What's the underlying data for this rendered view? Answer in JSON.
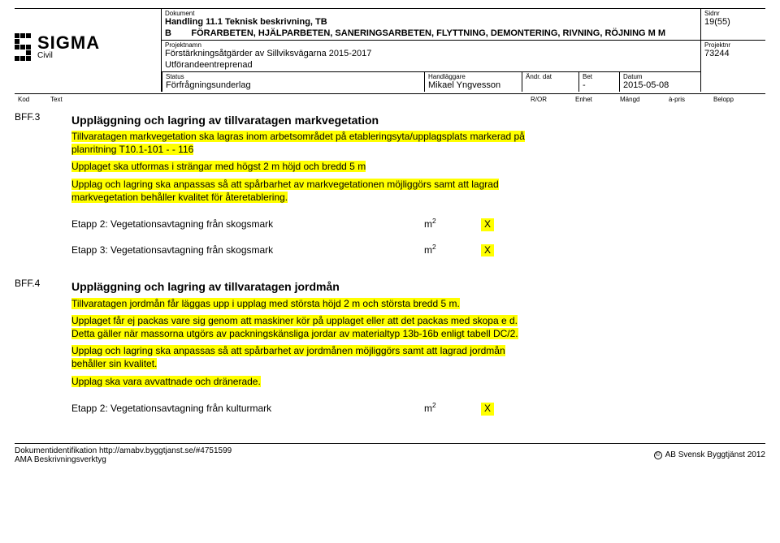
{
  "header": {
    "dokument_label": "Dokument",
    "dokument_line1": "Handling 11.1 Teknisk beskrivning, TB",
    "dokument_line2": "B        FÖRARBETEN, HJÄLPARBETEN, SANERINGSARBETEN, FLYTTNING, DEMONTERING, RIVNING, RÖJNING M M",
    "sidnr_label": "Sidnr",
    "sidnr": "19(55)",
    "projektnamn_label": "Projektnamn",
    "projektnamn_line1": "Förstärkningsåtgärder av Sillviksvägarna 2015-2017",
    "projektnamn_line2": "Utförandeentreprenad",
    "projektnr_label": "Projektnr",
    "projektnr": "73244",
    "status_label": "Status",
    "status": "Förfrågningsunderlag",
    "handlaggare_label": "Handläggare",
    "handlaggare": "Mikael Yngvesson",
    "andrdat_label": "Ändr. dat",
    "andrdat": "",
    "bet_label": "Bet",
    "bet": "-",
    "datum_label": "Datum",
    "datum": "2015-05-08"
  },
  "columns": {
    "kod": "Kod",
    "text": "Text",
    "ror": "R/OR",
    "enhet": "Enhet",
    "mangd": "Mängd",
    "apris": "à-pris",
    "belopp": "Belopp"
  },
  "sections": [
    {
      "code": "BFF.3",
      "heading": "Uppläggning och lagring av tillvaratagen markvegetation",
      "highlighted_paragraphs": [
        "Tillvaratagen markvegetation ska lagras inom arbetsområdet på etableringsyta/upplagsplats markerad på planritning T10.1-101 - - 116",
        "Upplaget ska utformas i strängar med högst 2 m höjd och bredd 5 m",
        "Upplag och lagring ska anpassas så att spårbarhet av markvegetationen möjliggörs samt att lagrad markvegetation behåller kvalitet för återetablering."
      ],
      "etapp_rows": [
        {
          "label": "Etapp 2: Vegetationsavtagning från skogsmark",
          "unit": "m2",
          "x": "X"
        },
        {
          "label": "Etapp 3: Vegetationsavtagning från skogsmark",
          "unit": "m2",
          "x": "X"
        }
      ]
    },
    {
      "code": "BFF.4",
      "heading": "Uppläggning och lagring av tillvaratagen jordmån",
      "highlighted_paragraphs": [
        "Tillvaratagen jordmån får läggas upp i upplag med största höjd 2 m och största bredd 5 m.",
        "Upplaget får ej packas vare sig genom att maskiner kör på upplaget eller att det packas med skopa e d. Detta gäller när massorna utgörs av packningskänsliga jordar av materialtyp 13b-16b enligt tabell DC/2.",
        "Upplag och lagring ska anpassas så att spårbarhet av jordmånen möjliggörs samt att lagrad jordmån behåller sin kvalitet.",
        "Upplag ska vara avvattnade och dränerade."
      ],
      "etapp_rows": [
        {
          "label": "Etapp 2: Vegetationsavtagning från kulturmark",
          "unit": "m2",
          "x": "X"
        }
      ]
    }
  ],
  "footer": {
    "left_line1": "Dokumentidentifikation http://amabv.byggtjanst.se/#4751599",
    "left_line2": "AMA Beskrivningsverktyg",
    "right": "AB Svensk Byggtjänst 2012",
    "copy": "©"
  },
  "logo": {
    "name": "SIGMA",
    "sub": "Civil"
  }
}
